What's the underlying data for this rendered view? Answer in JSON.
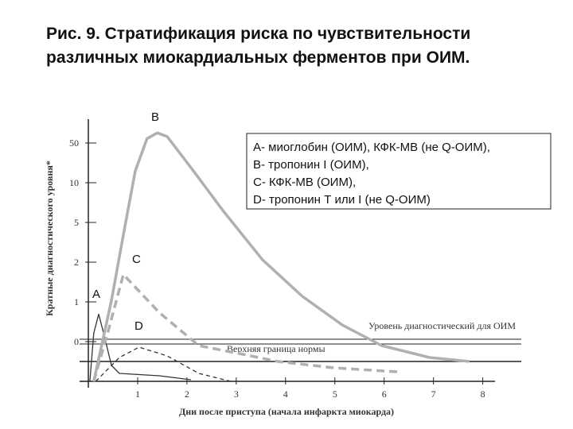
{
  "chart_data": {
    "type": "line",
    "title": "Рис. 9. Стратификация риска по чувствительности",
    "subtitle": "различных миокардиальных ферментов при ОИМ.",
    "x_label": "Дни после приступа (начала инфаркта миокарда)",
    "y_label": "Кратные диагностического уровня*",
    "legend_lines": [
      "А- миоглобин (ОИМ), КФК-МВ (не Q-ОИМ),",
      "В- тропонин I (ОИМ),",
      "С- КФК-МВ (ОИМ),",
      "D- тропонин Т или I (не Q-ОИМ)"
    ],
    "series": [
      {
        "name": "A",
        "color": "#333333",
        "dash": false,
        "x": [
          0.03,
          0.11,
          0.21,
          0.31,
          0.47,
          0.63,
          1.44,
          2.08
        ],
        "values": [
          -1,
          0.21,
          0.69,
          0.21,
          -0.6,
          -0.8,
          -0.86,
          -0.96
        ]
      },
      {
        "name": "B",
        "color": "#b0b0b0",
        "dash": false,
        "x": [
          0.11,
          0.47,
          0.71,
          0.95,
          1.19,
          1.4,
          1.6,
          2.08,
          2.73,
          3.53,
          4.34,
          5.15,
          5.95,
          6.92,
          7.73
        ],
        "values": [
          -1,
          1.04,
          4.06,
          21.6,
          54.4,
          60.2,
          56.5,
          25.3,
          6.5,
          2.19,
          1.14,
          0.42,
          -0.1,
          -0.4,
          -0.5
        ]
      },
      {
        "name": "C",
        "color": "#b0b0b0",
        "dash": true,
        "x": [
          0.11,
          0.39,
          0.71,
          1.44,
          2.24,
          3.05,
          3.85,
          4.98,
          6.27
        ],
        "values": [
          -1,
          0.21,
          1.69,
          0.73,
          -0.1,
          -0.3,
          -0.5,
          -0.66,
          -0.76
        ]
      },
      {
        "name": "D",
        "color": "#333333",
        "dash": true,
        "x": [
          0.15,
          0.63,
          1.03,
          1.6,
          2.24,
          2.89
        ],
        "values": [
          -1,
          -0.4,
          -0.14,
          -0.36,
          -0.8,
          -1
        ]
      }
    ],
    "reference_lines": [
      {
        "label": "Уровень диагностический для ОИМ",
        "value": 0
      },
      {
        "label": "Верхняя граница нормы",
        "value": -0.5
      }
    ],
    "xlim": [
      0,
      8.2
    ],
    "xticks": [
      1,
      2,
      3,
      4,
      5,
      6,
      7,
      8
    ],
    "ylim": [
      -1,
      70
    ],
    "yticks": [
      0,
      1,
      2,
      5,
      10,
      50
    ]
  }
}
